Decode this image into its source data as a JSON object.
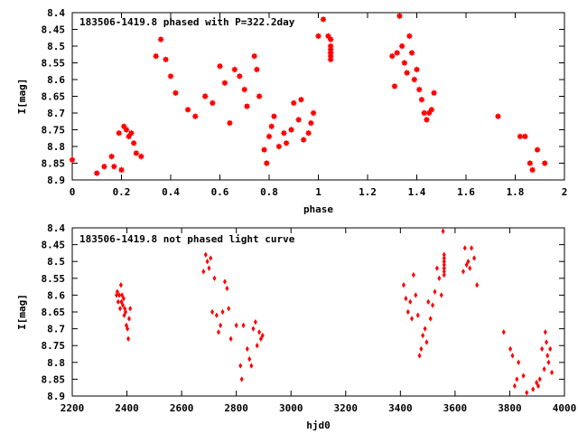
{
  "chart_data": [
    {
      "type": "scatter",
      "title": "183506-1419.8 phased with P=322.2day",
      "xlabel": "phase",
      "ylabel": "I[mag]",
      "xlim": [
        0,
        2
      ],
      "ylim": [
        8.9,
        8.4
      ],
      "y_reversed": true,
      "xticks": [
        "0",
        "0.2",
        "0.4",
        "0.6",
        "0.8",
        "1",
        "1.2",
        "1.4",
        "1.6",
        "1.8",
        "2"
      ],
      "yticks": [
        "8.4",
        "8.45",
        "8.5",
        "8.55",
        "8.6",
        "8.65",
        "8.7",
        "8.75",
        "8.8",
        "8.85",
        "8.9"
      ],
      "grid": false,
      "color": "#ff0000",
      "marker": "star",
      "series": [
        {
          "x": [
            0.0,
            0.1,
            0.13,
            0.16,
            0.17,
            0.19,
            0.2,
            0.21,
            0.22,
            0.23,
            0.24,
            0.25,
            0.26,
            0.28,
            0.34,
            0.36,
            0.38,
            0.4,
            0.42,
            0.47,
            0.5,
            0.54,
            0.57,
            0.6,
            0.62,
            0.64,
            0.66,
            0.68,
            0.7,
            0.71,
            0.74,
            0.75,
            0.76,
            0.78,
            0.79,
            0.8,
            0.81,
            0.82,
            0.84,
            0.86,
            0.87,
            0.89,
            0.9,
            0.92,
            0.93,
            0.94,
            0.96,
            0.97,
            0.98,
            1.0,
            1.02,
            1.04,
            1.05,
            1.3,
            1.31,
            1.32,
            1.33,
            1.34,
            1.35,
            1.36,
            1.37,
            1.38,
            1.39,
            1.4,
            1.41,
            1.42,
            1.43,
            1.44,
            1.45,
            1.46,
            1.47,
            1.73,
            1.82,
            1.84,
            1.86,
            1.87,
            1.89,
            1.92
          ],
          "y": [
            8.84,
            8.88,
            8.86,
            8.83,
            8.86,
            8.76,
            8.87,
            8.74,
            8.75,
            8.77,
            8.76,
            8.79,
            8.82,
            8.83,
            8.53,
            8.48,
            8.54,
            8.59,
            8.64,
            8.69,
            8.71,
            8.65,
            8.67,
            8.56,
            8.61,
            8.73,
            8.57,
            8.59,
            8.63,
            8.68,
            8.53,
            8.57,
            8.65,
            8.81,
            8.85,
            8.77,
            8.74,
            8.71,
            8.8,
            8.76,
            8.79,
            8.75,
            8.67,
            8.72,
            8.66,
            8.78,
            8.76,
            8.73,
            8.7,
            8.47,
            8.42,
            8.47,
            8.52,
            8.53,
            8.62,
            8.52,
            8.41,
            8.5,
            8.55,
            8.58,
            8.47,
            8.52,
            8.6,
            8.57,
            8.63,
            8.66,
            8.7,
            8.72,
            8.7,
            8.69,
            8.64,
            8.71,
            8.77,
            8.77,
            8.85,
            8.87,
            8.81,
            8.85
          ]
        },
        {
          "x": [
            1.05,
            1.05,
            1.05,
            1.05,
            1.05,
            1.05
          ],
          "y": [
            8.48,
            8.5,
            8.51,
            8.52,
            8.53,
            8.54
          ]
        }
      ]
    },
    {
      "type": "scatter",
      "title": "183506-1419.8 not phased light curve",
      "xlabel": "hjd0",
      "ylabel": "I[mag]",
      "xlim": [
        2200,
        4000
      ],
      "ylim": [
        8.9,
        8.4
      ],
      "y_reversed": true,
      "xticks": [
        "2200",
        "2400",
        "2600",
        "2800",
        "3000",
        "3200",
        "3400",
        "3600",
        "3800",
        "4000"
      ],
      "yticks": [
        "8.4",
        "8.45",
        "8.5",
        "8.55",
        "8.6",
        "8.65",
        "8.7",
        "8.75",
        "8.8",
        "8.85",
        "8.9"
      ],
      "grid": false,
      "color": "#ff0000",
      "marker": "diamond",
      "series": [
        {
          "x": [
            2362,
            2365,
            2368,
            2372,
            2375,
            2378,
            2380,
            2382,
            2385,
            2388,
            2390,
            2392,
            2395,
            2398,
            2402,
            2405,
            2408,
            2412,
            2680,
            2688,
            2694,
            2700,
            2706,
            2712,
            2720,
            2728,
            2735,
            2742,
            2750,
            2758,
            2766,
            2772,
            2780,
            2800,
            2815,
            2820,
            2826,
            2840,
            2848,
            2855,
            2862,
            2870,
            2876,
            2884,
            2890,
            2896,
            3412,
            3420,
            3428,
            3436,
            3442,
            3448,
            3456,
            3464,
            3470,
            3476,
            3482,
            3490,
            3496,
            3502,
            3510,
            3518,
            3526,
            3534,
            3542,
            3550,
            3556,
            3560,
            3630,
            3636,
            3642,
            3648,
            3654,
            3660,
            3670,
            3680,
            3778,
            3802,
            3810,
            3818,
            3826,
            3832,
            3850,
            3862,
            3885,
            3898,
            3904,
            3910,
            3918,
            3926,
            3930,
            3934,
            3938,
            3942,
            3948,
            3954
          ],
          "y": [
            8.6,
            8.59,
            8.62,
            8.6,
            8.64,
            8.57,
            8.62,
            8.6,
            8.63,
            8.61,
            8.66,
            8.64,
            8.65,
            8.69,
            8.7,
            8.73,
            8.67,
            8.64,
            8.53,
            8.48,
            8.5,
            8.52,
            8.49,
            8.65,
            8.55,
            8.66,
            8.71,
            8.69,
            8.65,
            8.56,
            8.58,
            8.64,
            8.73,
            8.69,
            8.81,
            8.85,
            8.69,
            8.76,
            8.79,
            8.81,
            8.7,
            8.68,
            8.75,
            8.71,
            8.73,
            8.72,
            8.57,
            8.61,
            8.65,
            8.62,
            8.67,
            8.54,
            8.6,
            8.66,
            8.78,
            8.76,
            8.72,
            8.7,
            8.74,
            8.62,
            8.67,
            8.63,
            8.59,
            8.52,
            8.55,
            8.6,
            8.41,
            8.52,
            8.53,
            8.46,
            8.51,
            8.5,
            8.52,
            8.46,
            8.49,
            8.57,
            8.71,
            8.76,
            8.78,
            8.87,
            8.85,
            8.8,
            8.84,
            8.89,
            8.88,
            8.86,
            8.87,
            8.85,
            8.76,
            8.82,
            8.71,
            8.74,
            8.78,
            8.8,
            8.76,
            8.83
          ]
        },
        {
          "x": [
            3560,
            3560,
            3560,
            3560,
            3560,
            3560,
            3560,
            3560
          ],
          "y": [
            8.48,
            8.49,
            8.5,
            8.51,
            8.52,
            8.53,
            8.54,
            8.5
          ]
        }
      ]
    }
  ]
}
